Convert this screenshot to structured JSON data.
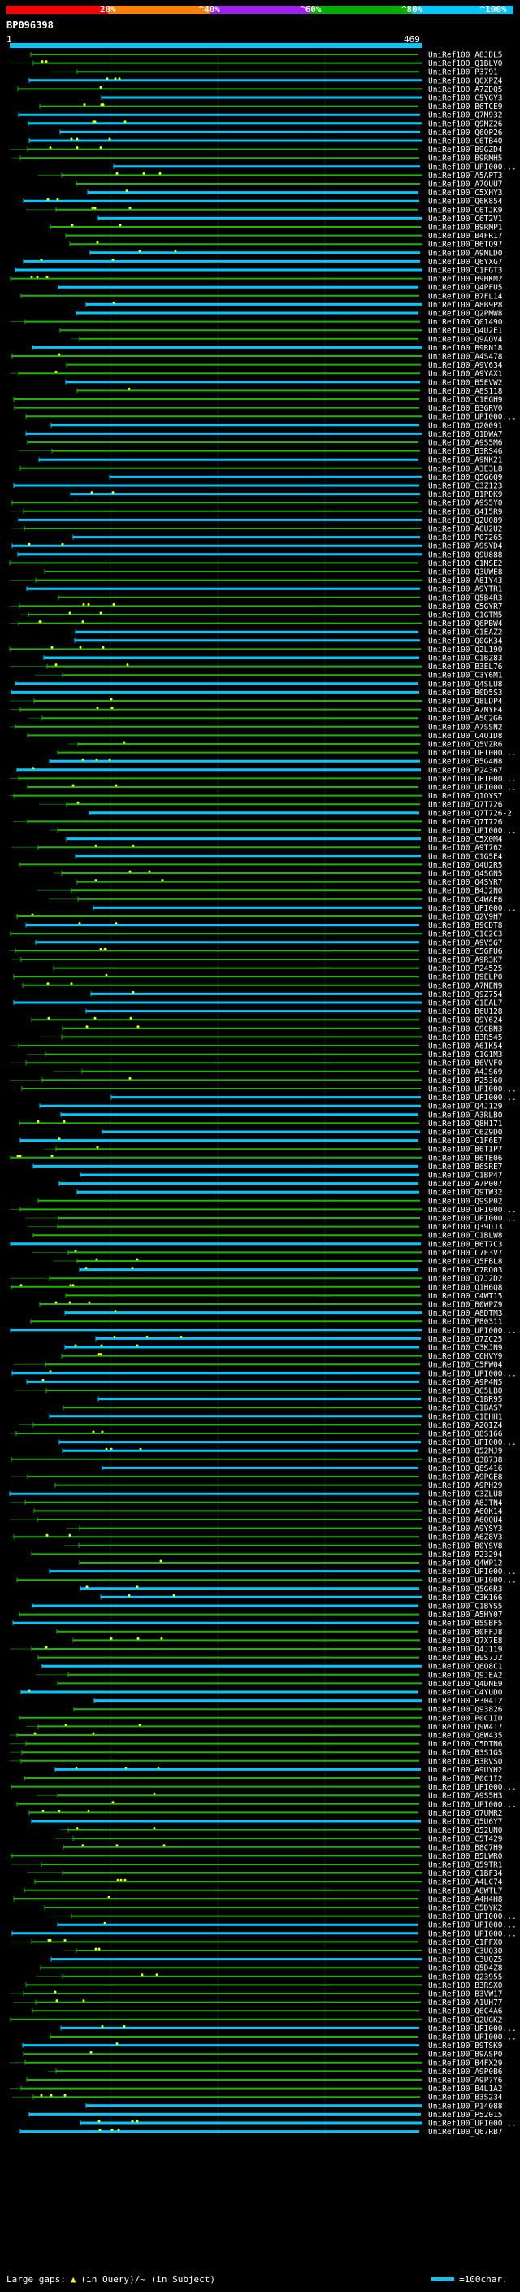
{
  "scale": {
    "labels": [
      "20%",
      "^40%",
      "^60%",
      "^80%",
      "^100%"
    ],
    "label_positions": [
      20,
      40,
      60,
      80,
      100
    ],
    "colors": [
      "#ff0000",
      "#ff8000",
      "#a020f0",
      "#00b000",
      "#00c8ff"
    ]
  },
  "query": {
    "id": "BP096398",
    "start": "1",
    "end": "469"
  },
  "hits": [
    "UniRef100_A8JDL5",
    "UniRef100_Q1BLV0",
    "UniRef100_P3791",
    "UniRef100_Q6XPZ4",
    "UniRef100_A7ZDQ5",
    "UniRef100_C5YGY3",
    "UniRef100_B6TCE9",
    "UniRef100_Q7M932",
    "UniRef100_Q9MZ26",
    "UniRef100_Q6QP26",
    "UniRef100_C6TB40",
    "UniRef100_B9GZD4",
    "UniRef100_B9RMH5",
    "UniRef100_UPI000...",
    "UniRef100_A5APT3",
    "UniRef100_A7QUU7",
    "UniRef100_C5XHY3",
    "UniRef100_Q6K854",
    "UniRef100_C6TJK9",
    "UniRef100_C6T2V1",
    "UniRef100_B9RMP1",
    "UniRef100_B4FR17",
    "UniRef100_B6TQ97",
    "UniRef100_A9NLD0",
    "UniRef100_Q6YXG7",
    "UniRef100_C1FGT3",
    "UniRef100_B9HKM2",
    "UniRef100_Q4PFU5",
    "UniRef100_B7FL14",
    "UniRef100_A8B9P8",
    "UniRef100_Q2PMW8",
    "UniRef100_Q01490",
    "UniRef100_Q4U2E1",
    "UniRef100_Q9AQV4",
    "UniRef100_B9RN18",
    "UniRef100_A4S478",
    "UniRef100_A9V634",
    "UniRef100_A9YAX1",
    "UniRef100_B5EVW2",
    "UniRef100_A8S118",
    "UniRef100_C1EGH9",
    "UniRef100_B3GRV0",
    "UniRef100_UPI000...",
    "UniRef100_Q20091",
    "UniRef100_Q1DWA7",
    "UniRef100_A9S5M6",
    "UniRef100_B3RS46",
    "UniRef100_A9NK21",
    "UniRef100_A3E3L8",
    "UniRef100_Q5G6Q9",
    "UniRef100_C3Z123",
    "UniRef100_B1PDK9",
    "UniRef100_A9S5Y0",
    "UniRef100_Q4I5R9",
    "UniRef100_Q2U089",
    "UniRef100_A6U2U2",
    "UniRef100_P07265",
    "UniRef100_A9SYD4",
    "UniRef100_Q9U888",
    "UniRef100_C1MSE2",
    "UniRef100_Q3UWE8",
    "UniRef100_A8IY43",
    "UniRef100_A9YTR1",
    "UniRef100_Q5B4R3",
    "UniRef100_C5GYR7",
    "UniRef100_C1GTM5",
    "UniRef100_Q6PBW4",
    "UniRef100_C1EAZ2",
    "UniRef100_Q0GK34",
    "UniRef100_Q2L190",
    "UniRef100_C1BZ83",
    "UniRef100_B3EL76",
    "UniRef100_C3Y6M1",
    "UniRef100_Q4SLU8",
    "UniRef100_B0D5S3",
    "UniRef100_Q8LDP4",
    "UniRef100_A7NYF4",
    "UniRef100_A5C2G6",
    "UniRef100_A7SSN2",
    "UniRef100_C4Q1D8",
    "UniRef100_Q5VZR6",
    "UniRef100_UPI000...",
    "UniRef100_B5G4N8",
    "UniRef100_P24367",
    "UniRef100_UPI000...",
    "UniRef100_UPI000...",
    "UniRef100_Q1QYS7",
    "UniRef100_Q7T726",
    "UniRef100_Q7T726-2",
    "UniRef100_Q7T726",
    "UniRef100_UPI000...",
    "UniRef100_C5X0M4",
    "UniRef100_A9T762",
    "UniRef100_C1G5E4",
    "UniRef100_Q4U2R5",
    "UniRef100_Q4SGN5",
    "UniRef100_Q4SYR7",
    "UniRef100_B4J2N0",
    "UniRef100_C4WAE6",
    "UniRef100_UPI000...",
    "UniRef100_Q2V9H7",
    "UniRef100_B9CDT8",
    "UniRef100_C1C2C3",
    "UniRef100_A9V5G7",
    "UniRef100_C5GFU6",
    "UniRef100_A9R3K7",
    "UniRef100_P24525",
    "UniRef100_B9ELP0",
    "UniRef100_A7MEN9",
    "UniRef100_Q9Z754",
    "UniRef100_C1EAL7",
    "UniRef100_B6U128",
    "UniRef100_Q9Y624",
    "UniRef100_C9CBN3",
    "UniRef100_B3R545",
    "UniRef100_A6IK54",
    "UniRef100_C1G1M3",
    "UniRef100_B6VVF0",
    "UniRef100_A4JS69",
    "UniRef100_P25360",
    "UniRef100_UPI000...",
    "UniRef100_UPI000...",
    "UniRef100_Q4J129",
    "UniRef100_A3RLB0",
    "UniRef100_Q8H171",
    "UniRef100_C6Z9D0",
    "UniRef100_C1F6E7",
    "UniRef100_B6TIP7",
    "UniRef100_B6TE06",
    "UniRef100_B6SRE7",
    "UniRef100_C1BP47",
    "UniRef100_A7P007",
    "UniRef100_Q9TW32",
    "UniRef100_Q9SP02",
    "UniRef100_UPI000...",
    "UniRef100_UPI000...",
    "UniRef100_Q39DJ3",
    "UniRef100_C1BLW8",
    "UniRef100_B6T7C3",
    "UniRef100_C7E3V7",
    "UniRef100_Q5FBL8",
    "UniRef100_C7RQ03",
    "UniRef100_Q7J2D2",
    "UniRef100_Q1H6Q8",
    "UniRef100_C4WT15",
    "UniRef100_B0WPZ9",
    "UniRef100_A8DTM3",
    "UniRef100_P80311",
    "UniRef100_UPI000...",
    "UniRef100_Q7ZC25",
    "UniRef100_C3KJN9",
    "UniRef100_C6HVY9",
    "UniRef100_C5FW04",
    "UniRef100_UPI000...",
    "UniRef100_A9P4N5",
    "UniRef100_Q65LB0",
    "UniRef100_C1BR95",
    "UniRef100_C1BAS7",
    "UniRef100_C1EHH1",
    "UniRef100_A2QIZ4",
    "UniRef100_Q8S166",
    "UniRef100_UPI000...",
    "UniRef100_Q52MJ9",
    "UniRef100_Q3B738",
    "UniRef100_Q8S416",
    "UniRef100_A9PGE8",
    "UniRef100_A9PH29",
    "UniRef100_C3ZLU8",
    "UniRef100_A8JTN4",
    "UniRef100_A6QK14",
    "UniRef100_A6QQU4",
    "UniRef100_A9YSY3",
    "UniRef100_A6Z8V3",
    "UniRef100_B0YSV8",
    "UniRef100_P23294",
    "UniRef100_Q4WP12",
    "UniRef100_UPI000...",
    "UniRef100_UPI000...",
    "UniRef100_Q5G6R3",
    "UniRef100_C3K166",
    "UniRef100_C1BYS5",
    "UniRef100_A5HY07",
    "UniRef100_B5SBF5",
    "UniRef100_B0FFJ8",
    "UniRef100_Q7X7E8",
    "UniRef100_Q4J119",
    "UniRef100_B9S7J2",
    "UniRef100_Q6Q8C1",
    "UniRef100_Q9JEA2",
    "UniRef100_Q4DNE9",
    "UniRef100_C4YUD0",
    "UniRef100_P30412",
    "UniRef100_Q93826",
    "UniRef100_P0C1I0",
    "UniRef100_Q9W417",
    "UniRef100_Q8W435",
    "UniRef100_C5DTN6",
    "UniRef100_B3S1G5",
    "UniRef100_B3RVS0",
    "UniRef100_A9UYH2",
    "UniRef100_P0C1I2",
    "UniRef100_UPI000...",
    "UniRef100_A9S5H3",
    "UniRef100_UPI000...",
    "UniRef100_Q7UMR2",
    "UniRef100_Q5U6Y7",
    "UniRef100_Q52UN0",
    "UniRef100_C5T429",
    "UniRef100_B8C7H9",
    "UniRef100_B5LWR0",
    "UniRef100_Q59TR1",
    "UniRef100_C1BF34",
    "UniRef100_A4LC74",
    "UniRef100_A8WTL7",
    "UniRef100_A4H4H8",
    "UniRef100_C5DYK2",
    "UniRef100_UPI000...",
    "UniRef100_UPI000...",
    "UniRef100_UPI000...",
    "UniRef100_C1FFX0",
    "UniRef100_C3UQ30",
    "UniRef100_C3UQZ5",
    "UniRef100_Q5D4Z8",
    "UniRef100_Q23955",
    "UniRef100_B3RSX0",
    "UniRef100_B3VW17",
    "UniRef100_A1UH77",
    "UniRef100_Q6C4A6",
    "UniRef100_Q2UGK2",
    "UniRef100_UPI000...",
    "UniRef100_UPI000...",
    "UniRef100_B9TSK9",
    "UniRef100_B9ASP0",
    "UniRef100_B4FX29",
    "UniRef100_A9P0B6",
    "UniRef100_A9P7Y6",
    "UniRef100_B4L1A2",
    "UniRef100_B3S234",
    "UniRef100_P14088",
    "UniRef100_P52015",
    "UniRef100_UPI000...",
    "UniRef100_Q67RB7"
  ],
  "footer": {
    "large_gaps": "Large gaps:",
    "gap_marker": "▲",
    "in_query": "(in Query)/~ (in Subject)",
    "legend": "=100char."
  }
}
